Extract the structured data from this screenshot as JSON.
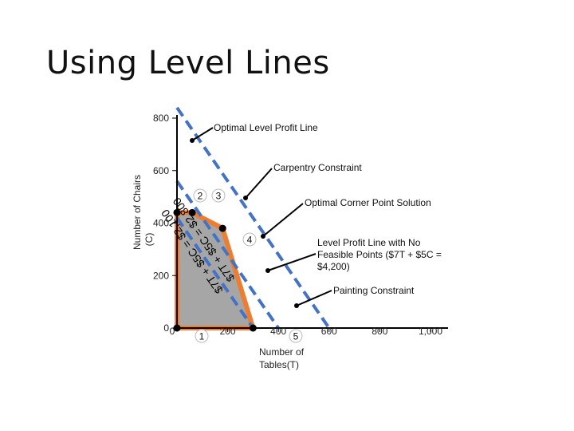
{
  "slide": {
    "title": "Using Level Lines"
  },
  "chart_data": {
    "type": "line",
    "title": "",
    "xlabel": [
      "Number of",
      "Tables(T)"
    ],
    "ylabel": [
      "Number of Chairs",
      "(C)"
    ],
    "xlim": [
      0,
      1000
    ],
    "ylim": [
      0,
      800
    ],
    "x_ticks": [
      {
        "value": 0,
        "label": "0"
      },
      {
        "value": 200,
        "label": "200"
      },
      {
        "value": 400,
        "label": "400"
      },
      {
        "value": 600,
        "label": "600"
      },
      {
        "value": 800,
        "label": "800"
      },
      {
        "value": 1000,
        "label": "1,000"
      }
    ],
    "y_ticks": [
      {
        "value": 0,
        "label": "0"
      },
      {
        "value": 200,
        "label": "200"
      },
      {
        "value": 400,
        "label": "400"
      },
      {
        "value": 600,
        "label": "600"
      },
      {
        "value": 800,
        "label": "800"
      }
    ],
    "feasible_region": {
      "vertices": [
        [
          0,
          0
        ],
        [
          0,
          440
        ],
        [
          60,
          440
        ],
        [
          180,
          380
        ],
        [
          300,
          0
        ]
      ],
      "fill": "#a6a6a6",
      "stroke": "#ed7d31"
    },
    "corner_points": [
      {
        "id": "1",
        "x": 0,
        "y": 0
      },
      {
        "id": "2",
        "x": 0,
        "y": 440
      },
      {
        "id": "3",
        "x": 60,
        "y": 440
      },
      {
        "id": "4",
        "x": 180,
        "y": 380
      },
      {
        "id": "5",
        "x": 300,
        "y": 0
      }
    ],
    "level_lines": [
      {
        "label": "$7T + $5C = $2,100",
        "value": 2100,
        "coef_T": 7,
        "coef_C": 5
      },
      {
        "label": "$7T + $5C = $2,800",
        "value": 2800,
        "coef_T": 7,
        "coef_C": 5
      },
      {
        "label": "",
        "value": 4200,
        "coef_T": 7,
        "coef_C": 5
      }
    ],
    "level_line_color": "#4472c4",
    "annotations": [
      {
        "text": "Optimal Level Profit Line"
      },
      {
        "text": "Carpentry Constraint"
      },
      {
        "text": "Optimal Corner Point Solution"
      },
      {
        "text": [
          "Level Profit Line with No",
          "Feasible Points ($7T + $5C =",
          "$4,200)"
        ]
      },
      {
        "text": "Painting Constraint"
      }
    ]
  }
}
